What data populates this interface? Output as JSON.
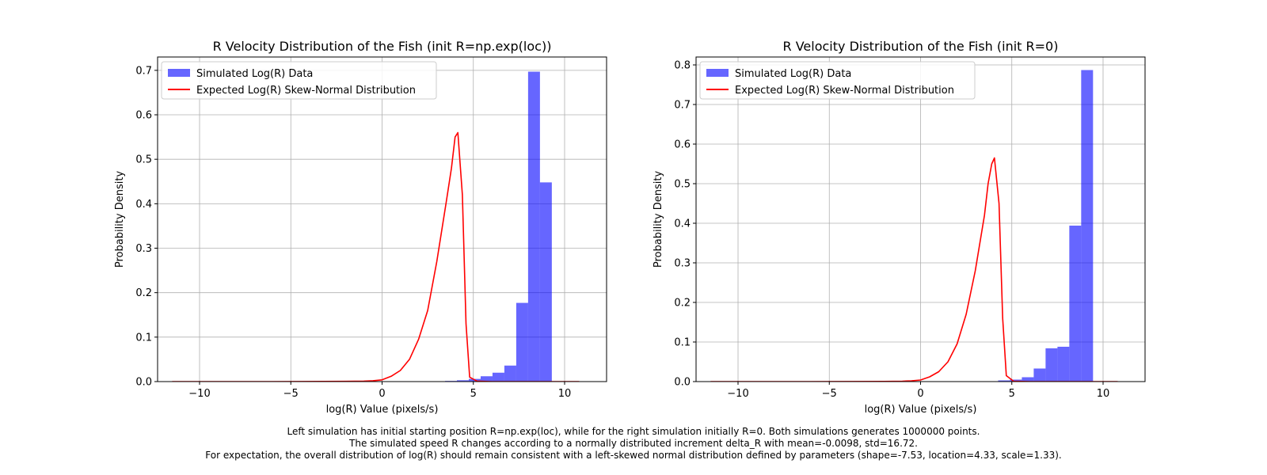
{
  "colors": {
    "hist": "#0000ff",
    "curve": "#ff0000",
    "grid": "#b0b0b0"
  },
  "chart_data": [
    {
      "type": "bar",
      "title": "R Velocity Distribution of the Fish (init R=np.exp(loc))",
      "xlabel": "log(R) Value (pixels/s)",
      "ylabel": "Probability Density",
      "xlim": [
        -12.3,
        12.3
      ],
      "ylim": [
        0,
        0.73
      ],
      "xticks": [
        -10,
        -5,
        0,
        5,
        10
      ],
      "xtick_labels": [
        "−10",
        "−5",
        "0",
        "5",
        "10"
      ],
      "yticks": [
        0.0,
        0.1,
        0.2,
        0.3,
        0.4,
        0.5,
        0.6,
        0.7
      ],
      "ytick_labels": [
        "0.0",
        "0.1",
        "0.2",
        "0.3",
        "0.4",
        "0.5",
        "0.6",
        "0.7"
      ],
      "grid": true,
      "legend_position": "top-left",
      "series": [
        {
          "name": "Simulated Log(R) Data",
          "kind": "histogram",
          "bins": [
            {
              "x0": 3.45,
              "x1": 4.1,
              "value": 0.0015
            },
            {
              "x0": 4.1,
              "x1": 4.75,
              "value": 0.003
            },
            {
              "x0": 4.75,
              "x1": 5.4,
              "value": 0.006
            },
            {
              "x0": 5.4,
              "x1": 6.05,
              "value": 0.012
            },
            {
              "x0": 6.05,
              "x1": 6.7,
              "value": 0.02
            },
            {
              "x0": 6.7,
              "x1": 7.35,
              "value": 0.036
            },
            {
              "x0": 7.35,
              "x1": 8.0,
              "value": 0.177
            },
            {
              "x0": 8.0,
              "x1": 8.65,
              "value": 0.697
            },
            {
              "x0": 8.65,
              "x1": 9.3,
              "value": 0.448
            }
          ]
        },
        {
          "name": "Expected Log(R) Skew-Normal Distribution",
          "kind": "line",
          "points": [
            [
              -11.5,
              0
            ],
            [
              -6,
              0
            ],
            [
              -2,
              0.0005
            ],
            [
              -1,
              0.001
            ],
            [
              -0.5,
              0.002
            ],
            [
              0,
              0.004
            ],
            [
              0.5,
              0.012
            ],
            [
              1,
              0.025
            ],
            [
              1.5,
              0.05
            ],
            [
              2,
              0.095
            ],
            [
              2.5,
              0.16
            ],
            [
              3,
              0.27
            ],
            [
              3.5,
              0.4
            ],
            [
              3.8,
              0.48
            ],
            [
              4.0,
              0.55
            ],
            [
              4.15,
              0.56
            ],
            [
              4.4,
              0.42
            ],
            [
              4.6,
              0.13
            ],
            [
              4.8,
              0.01
            ],
            [
              5.2,
              0.001
            ],
            [
              6,
              0
            ],
            [
              10.8,
              0
            ]
          ]
        }
      ]
    },
    {
      "type": "bar",
      "title": "R Velocity Distribution of the Fish (init R=0)",
      "xlabel": "log(R) Value (pixels/s)",
      "ylabel": "Probability Density",
      "xlim": [
        -12.3,
        12.3
      ],
      "ylim": [
        0,
        0.82
      ],
      "xticks": [
        -10,
        -5,
        0,
        5,
        10
      ],
      "xtick_labels": [
        "−10",
        "−5",
        "0",
        "5",
        "10"
      ],
      "yticks": [
        0.0,
        0.1,
        0.2,
        0.3,
        0.4,
        0.5,
        0.6,
        0.7,
        0.8
      ],
      "ytick_labels": [
        "0.0",
        "0.1",
        "0.2",
        "0.3",
        "0.4",
        "0.5",
        "0.6",
        "0.7",
        "0.8"
      ],
      "grid": true,
      "legend_position": "top-left",
      "series": [
        {
          "name": "Simulated Log(R) Data",
          "kind": "histogram",
          "bins": [
            {
              "x0": 3.6,
              "x1": 4.25,
              "value": 0.001
            },
            {
              "x0": 4.25,
              "x1": 4.9,
              "value": 0.003
            },
            {
              "x0": 4.9,
              "x1": 5.55,
              "value": 0.005
            },
            {
              "x0": 5.55,
              "x1": 6.2,
              "value": 0.011
            },
            {
              "x0": 6.2,
              "x1": 6.85,
              "value": 0.033
            },
            {
              "x0": 6.85,
              "x1": 7.5,
              "value": 0.084
            },
            {
              "x0": 7.5,
              "x1": 8.15,
              "value": 0.088
            },
            {
              "x0": 8.15,
              "x1": 8.8,
              "value": 0.394
            },
            {
              "x0": 8.8,
              "x1": 9.45,
              "value": 0.787
            }
          ]
        },
        {
          "name": "Expected Log(R) Skew-Normal Distribution",
          "kind": "line",
          "points": [
            [
              -11.5,
              0
            ],
            [
              -6,
              0
            ],
            [
              -2,
              0.0005
            ],
            [
              -1,
              0.001
            ],
            [
              -0.5,
              0.002
            ],
            [
              0,
              0.004
            ],
            [
              0.5,
              0.012
            ],
            [
              1,
              0.025
            ],
            [
              1.5,
              0.05
            ],
            [
              2,
              0.095
            ],
            [
              2.5,
              0.17
            ],
            [
              3,
              0.28
            ],
            [
              3.5,
              0.42
            ],
            [
              3.7,
              0.5
            ],
            [
              3.9,
              0.55
            ],
            [
              4.05,
              0.565
            ],
            [
              4.3,
              0.45
            ],
            [
              4.5,
              0.16
            ],
            [
              4.7,
              0.015
            ],
            [
              5.1,
              0.001
            ],
            [
              6,
              0
            ],
            [
              10.8,
              0
            ]
          ]
        }
      ]
    }
  ],
  "caption": {
    "lines": [
      "Left simulation has initial starting position R=np.exp(loc), while for the right simulation initially R=0. Both simulations generates 1000000 points.",
      "The simulated speed R changes according to a normally distributed increment delta_R with mean=-0.0098, std=16.72.",
      "For expectation, the overall distribution of log(R) should remain consistent with a left-skewed normal distribution defined by parameters (shape=-7.53, location=4.33, scale=1.33)."
    ]
  }
}
